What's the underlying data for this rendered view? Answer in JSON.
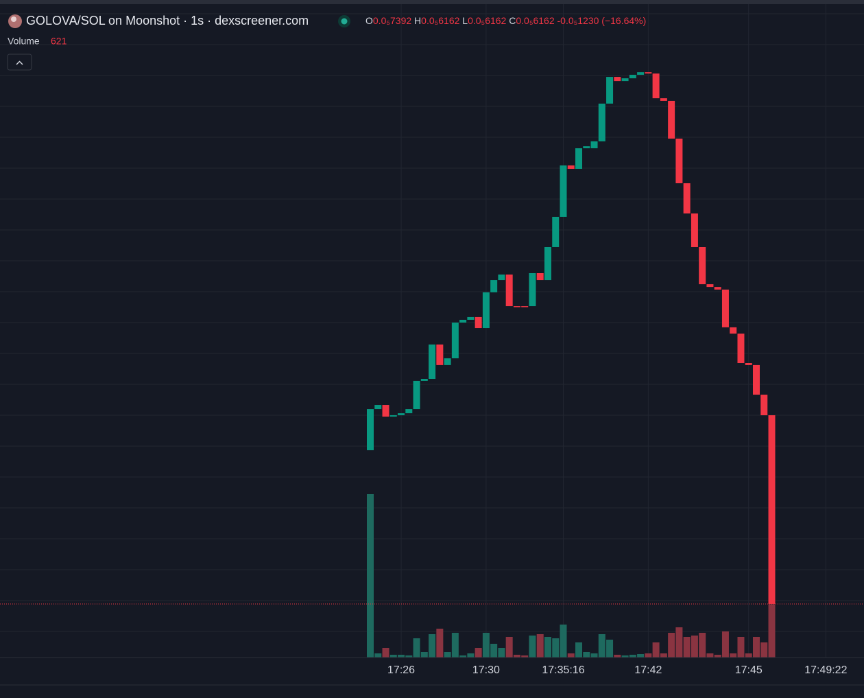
{
  "header": {
    "title": "GOLOVA/SOL on Moonshot · 1s · dexscreener.com",
    "ohlc": [
      {
        "key": "O",
        "value": "0.0₅7392"
      },
      {
        "key": "H",
        "value": "0.0₅6162"
      },
      {
        "key": "L",
        "value": "0.0₅6162"
      },
      {
        "key": "C",
        "value": "0.0₅6162"
      }
    ],
    "change": "-0.0₅1230 (−16.64%)",
    "volume_label": "Volume"
  },
  "chart_data": {
    "type": "candlestick",
    "categories": [
      null,
      null,
      null,
      null,
      "17:26",
      null,
      null,
      null,
      null,
      null,
      null,
      null,
      null,
      null,
      null,
      "17:30",
      null,
      null,
      null,
      null,
      null,
      null,
      null,
      null,
      null,
      "17:35:16",
      null,
      null,
      null,
      null,
      null,
      null,
      null,
      null,
      null,
      null,
      "17:42",
      null,
      null,
      null,
      null,
      null,
      null,
      null,
      null,
      null,
      null,
      null,
      null,
      "17:45",
      null,
      null,
      null,
      null,
      null,
      null,
      null,
      null,
      null,
      "17:49:22"
    ],
    "open": [
      7.164,
      7.432,
      7.459,
      7.383,
      7.392,
      7.405,
      7.432,
      7.616,
      7.629,
      7.853,
      7.719,
      7.763,
      7.996,
      8.014,
      8.032,
      7.96,
      8.193,
      8.273,
      8.309,
      8.103,
      8.103,
      8.103,
      8.318,
      8.273,
      8.488,
      8.685,
      9.02,
      8.998,
      9.132,
      9.132,
      9.177,
      9.423,
      9.597,
      9.57,
      9.588,
      9.611,
      9.628,
      9.619,
      9.458,
      9.441,
      9.195,
      8.904,
      8.707,
      8.488,
      8.246,
      8.228,
      8.211,
      7.965,
      7.924,
      7.732,
      7.719,
      7.526,
      7.392,
      null,
      null,
      null,
      null,
      null,
      null,
      null
    ],
    "close": [
      7.432,
      7.459,
      7.383,
      7.392,
      7.405,
      7.432,
      7.616,
      7.629,
      7.853,
      7.719,
      7.763,
      7.996,
      8.014,
      8.032,
      7.96,
      8.193,
      8.273,
      8.309,
      8.103,
      8.099,
      8.099,
      8.318,
      8.273,
      8.488,
      8.685,
      9.02,
      8.998,
      9.132,
      9.145,
      9.177,
      9.423,
      9.597,
      9.57,
      9.588,
      9.611,
      9.628,
      9.619,
      9.458,
      9.441,
      9.195,
      8.904,
      8.707,
      8.488,
      8.246,
      8.228,
      8.211,
      7.965,
      7.924,
      7.732,
      7.719,
      7.526,
      7.392,
      6.162,
      null,
      null,
      null,
      null,
      null,
      null,
      null
    ],
    "ylim": [
      5.813,
      9.651
    ],
    "up_color": "#089981",
    "down_color": "#f23645",
    "grid": true,
    "volume": {
      "values": [
        1904,
        48,
        112,
        32,
        32,
        24,
        224,
        64,
        272,
        336,
        64,
        288,
        24,
        48,
        112,
        288,
        160,
        112,
        240,
        32,
        24,
        256,
        272,
        240,
        224,
        384,
        48,
        176,
        64,
        48,
        272,
        208,
        32,
        24,
        32,
        40,
        48,
        176,
        48,
        288,
        352,
        240,
        256,
        288,
        48,
        32,
        304,
        48,
        240,
        48,
        240,
        176,
        621,
        null,
        null,
        null,
        null,
        null,
        null,
        null
      ],
      "ylim": [
        0,
        6864
      ],
      "up_color": "#1e6a5f",
      "down_color": "#8a3441"
    }
  }
}
